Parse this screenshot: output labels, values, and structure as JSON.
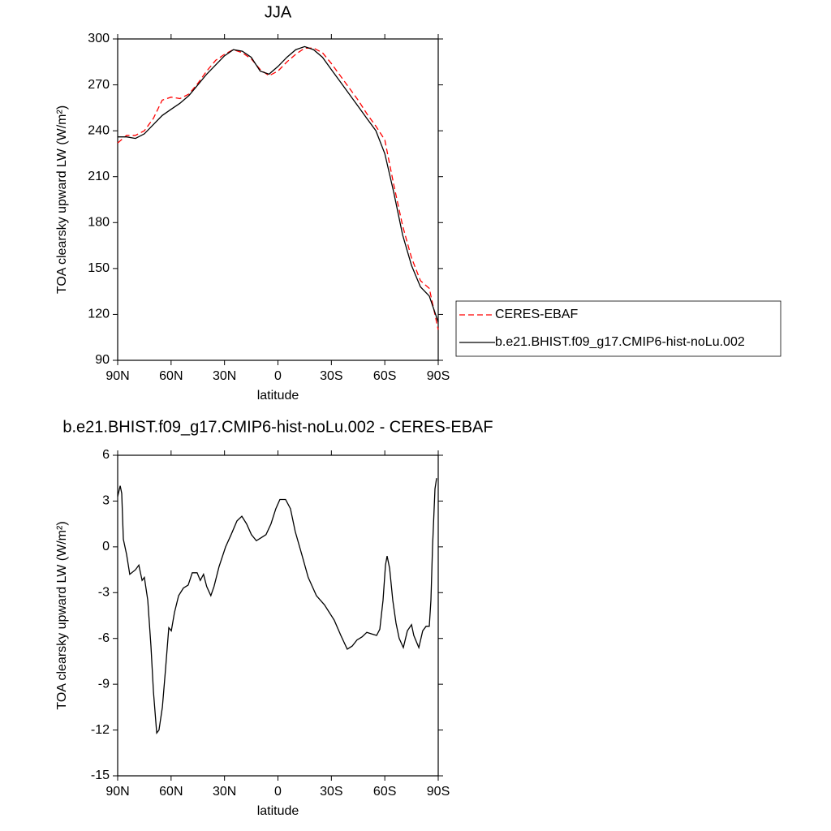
{
  "chart_data": [
    {
      "type": "line",
      "title": "JJA",
      "xlabel": "latitude",
      "ylabel": "TOA clearsky upward LW (W/m²)",
      "xlim": [
        90,
        -90
      ],
      "xticks": [
        {
          "value": 90,
          "label": "90N"
        },
        {
          "value": 60,
          "label": "60N"
        },
        {
          "value": 30,
          "label": "30N"
        },
        0,
        {
          "value": -30,
          "label": "30S"
        },
        {
          "value": -60,
          "label": "60S"
        },
        {
          "value": -90,
          "label": "90S"
        }
      ],
      "ylim": [
        90,
        300
      ],
      "yticks": [
        90,
        120,
        150,
        180,
        210,
        240,
        270,
        300
      ],
      "legend": "outside right",
      "x": [
        90,
        85,
        80,
        75,
        70,
        65,
        60,
        55,
        50,
        45,
        40,
        35,
        30,
        25,
        20,
        15,
        10,
        5,
        0,
        -5,
        -10,
        -15,
        -20,
        -25,
        -30,
        -35,
        -40,
        -45,
        -50,
        -55,
        -60,
        -65,
        -70,
        -75,
        -80,
        -85,
        -90
      ],
      "series": [
        {
          "name": "CERES-EBAF",
          "color": "#ff0000",
          "dashed": true,
          "values": [
            232,
            237,
            237,
            240,
            248,
            260,
            262,
            261,
            264,
            271,
            279,
            286,
            290,
            293,
            291,
            287,
            280,
            276,
            279,
            285,
            290,
            294,
            294,
            291,
            284,
            276,
            268,
            260,
            251,
            243,
            234,
            205,
            178,
            157,
            142,
            137,
            110
          ]
        },
        {
          "name": "b.e21.BHIST.f09_g17.CMIP6-hist-noLu.002",
          "color": "#000000",
          "dashed": false,
          "values": [
            236,
            236,
            235,
            238,
            244,
            250,
            254,
            258,
            263,
            270,
            277,
            283,
            289,
            293,
            292,
            288,
            279,
            277,
            282,
            288,
            293,
            295,
            293,
            288,
            280,
            272,
            264,
            256,
            248,
            240,
            225,
            200,
            172,
            152,
            138,
            132,
            115
          ]
        }
      ]
    },
    {
      "type": "line",
      "title": "b.e21.BHIST.f09_g17.CMIP6-hist-noLu.002 - CERES-EBAF",
      "xlabel": "latitude",
      "ylabel": "TOA clearsky upward LW (W/m²)",
      "xlim": [
        90,
        -90
      ],
      "xticks": [
        {
          "value": 90,
          "label": "90N"
        },
        {
          "value": 60,
          "label": "60N"
        },
        {
          "value": 30,
          "label": "30N"
        },
        0,
        {
          "value": -30,
          "label": "30S"
        },
        {
          "value": -60,
          "label": "60S"
        },
        {
          "value": -90,
          "label": "90S"
        }
      ],
      "ylim": [
        -15,
        6
      ],
      "yticks": [
        -15,
        -12,
        -9,
        -6,
        -3,
        0,
        3,
        6
      ],
      "x": [
        90,
        88.6,
        87.7,
        86.8,
        85,
        83.2,
        80,
        78.1,
        76.3,
        75,
        73.1,
        71.3,
        69.9,
        68.1,
        66.8,
        64.9,
        63.1,
        61.3,
        59.9,
        58.1,
        55.8,
        53.1,
        50.4,
        48.1,
        45.4,
        43.6,
        41.8,
        40,
        37.7,
        35.9,
        33.1,
        29.4,
        26.3,
        23,
        20.3,
        17.6,
        14.9,
        12.1,
        9.4,
        6.7,
        3.9,
        1.2,
        -1.1,
        -4.3,
        -7,
        -9.7,
        -13.4,
        -17,
        -21.6,
        -26.1,
        -31.6,
        -35.3,
        -38.9,
        -41.7,
        -44.4,
        -47.2,
        -49.9,
        -52.6,
        -55.4,
        -57.2,
        -59,
        -60.4,
        -61.3,
        -62.7,
        -64.5,
        -66.3,
        -68.1,
        -70.4,
        -72.7,
        -75,
        -76.3,
        -79.1,
        -81.3,
        -83.2,
        -85,
        -85.9,
        -86.8,
        -88.2,
        -89.1
      ],
      "series": [
        {
          "color": "#000000",
          "dashed": false,
          "values": [
            3.3,
            4,
            3.5,
            0.5,
            -0.5,
            -1.8,
            -1.5,
            -1.2,
            -2.2,
            -2,
            -3.5,
            -6.5,
            -9.5,
            -12.2,
            -12,
            -10.5,
            -8,
            -5.3,
            -5.5,
            -4.3,
            -3.2,
            -2.7,
            -2.5,
            -1.7,
            -1.7,
            -2.2,
            -1.8,
            -2.6,
            -3.2,
            -2.6,
            -1.3,
            0,
            0.8,
            1.7,
            2,
            1.5,
            0.8,
            0.4,
            0.6,
            0.8,
            1.5,
            2.5,
            3.1,
            3.1,
            2.5,
            1,
            -0.5,
            -2,
            -3.2,
            -3.8,
            -4.8,
            -5.8,
            -6.7,
            -6.5,
            -6.1,
            -5.9,
            -5.6,
            -5.7,
            -5.8,
            -5.4,
            -3.5,
            -1.2,
            -0.6,
            -1.4,
            -3.5,
            -5,
            -6,
            -6.6,
            -5.5,
            -5.1,
            -5.8,
            -6.6,
            -5.5,
            -5.2,
            -5.2,
            -3.5,
            0,
            3.8,
            4.5
          ]
        }
      ]
    }
  ]
}
